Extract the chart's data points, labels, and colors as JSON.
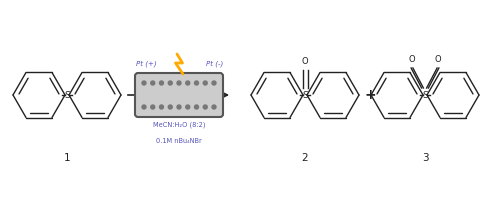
{
  "bg_color": "#ffffff",
  "text_color_dark": "#222222",
  "text_color_blue": "#5555bb",
  "lightning_color": "#ffaa00",
  "arrow_color": "#222222",
  "label_1": "1",
  "label_2": "2",
  "label_3": "3",
  "pt_plus": "Pt (+)",
  "pt_minus": "Pt (-)",
  "condition1": "MeCN:H₂O (8:2)",
  "condition2": "0.1M nBu₄NBr",
  "plus_sign": "+",
  "figsize": [
    4.92,
    2.0
  ],
  "dpi": 100
}
